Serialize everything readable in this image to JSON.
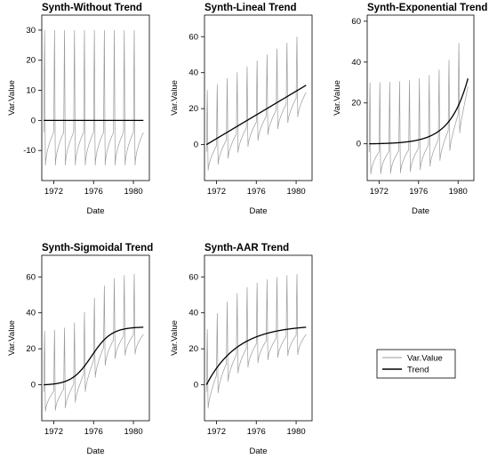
{
  "legend": {
    "items": [
      {
        "label": "Var.Value",
        "color": "#9a9a9a"
      },
      {
        "label": "Trend",
        "color": "#000000"
      }
    ]
  },
  "chart_data": [
    {
      "type": "line",
      "title": "Synth-Without Trend",
      "xlabel": "Date",
      "ylabel": "Var.Value",
      "x_ticks": [
        "1972",
        "1976",
        "1980"
      ],
      "y_ticks": [
        -10,
        0,
        10,
        20,
        30
      ],
      "xlim": [
        1970.8,
        1981.6
      ],
      "ylim": [
        -20,
        35
      ],
      "trend": "none",
      "series": [
        {
          "name": "Var.Value",
          "seasonal_peak": 32,
          "seasonal_trough": -16,
          "start": 1971.0,
          "end": 1981.0
        },
        {
          "name": "Trend",
          "start_value": 0,
          "end_value": 0
        }
      ]
    },
    {
      "type": "line",
      "title": "Synth-Lineal Trend",
      "xlabel": "Date",
      "ylabel": "Var.Value",
      "x_ticks": [
        "1972",
        "1976",
        "1980"
      ],
      "y_ticks": [
        0,
        20,
        40,
        60
      ],
      "xlim": [
        1970.8,
        1981.6
      ],
      "ylim": [
        -20,
        72
      ],
      "trend": "linear",
      "series": [
        {
          "name": "Var.Value",
          "seasonal_peak": 32,
          "seasonal_trough": -16,
          "start": 1971.0,
          "end": 1981.0
        },
        {
          "name": "Trend",
          "start_value": 0,
          "end_value": 33
        }
      ]
    },
    {
      "type": "line",
      "title": "Synth-Exponential Trend",
      "xlabel": "Date",
      "ylabel": "Var.Value",
      "x_ticks": [
        "1972",
        "1976",
        "1980"
      ],
      "y_ticks": [
        0,
        20,
        40,
        60
      ],
      "xlim": [
        1970.8,
        1981.6
      ],
      "ylim": [
        -18,
        63
      ],
      "trend": "exponential",
      "series": [
        {
          "name": "Var.Value",
          "seasonal_peak": 32,
          "seasonal_trough": -16,
          "start": 1971.0,
          "end": 1981.0
        },
        {
          "name": "Trend",
          "start_value": 0,
          "end_value": 32
        }
      ]
    },
    {
      "type": "line",
      "title": "Synth-Sigmoidal Trend",
      "xlabel": "Date",
      "ylabel": "Var.Value",
      "x_ticks": [
        "1972",
        "1976",
        "1980"
      ],
      "y_ticks": [
        0,
        20,
        40,
        60
      ],
      "xlim": [
        1970.8,
        1981.6
      ],
      "ylim": [
        -20,
        72
      ],
      "trend": "sigmoidal",
      "series": [
        {
          "name": "Var.Value",
          "seasonal_peak": 32,
          "seasonal_trough": -16,
          "start": 1971.0,
          "end": 1981.0
        },
        {
          "name": "Trend",
          "start_value": 0,
          "end_value": 32
        }
      ]
    },
    {
      "type": "line",
      "title": "Synth-AAR Trend",
      "xlabel": "Date",
      "ylabel": "Var.Value",
      "x_ticks": [
        "1972",
        "1976",
        "1980"
      ],
      "y_ticks": [
        0,
        20,
        40,
        60
      ],
      "xlim": [
        1970.8,
        1981.6
      ],
      "ylim": [
        -20,
        72
      ],
      "trend": "aar",
      "series": [
        {
          "name": "Var.Value",
          "seasonal_peak": 32,
          "seasonal_trough": -16,
          "start": 1971.0,
          "end": 1981.0
        },
        {
          "name": "Trend",
          "start_value": 0,
          "end_value": 32
        }
      ]
    }
  ]
}
